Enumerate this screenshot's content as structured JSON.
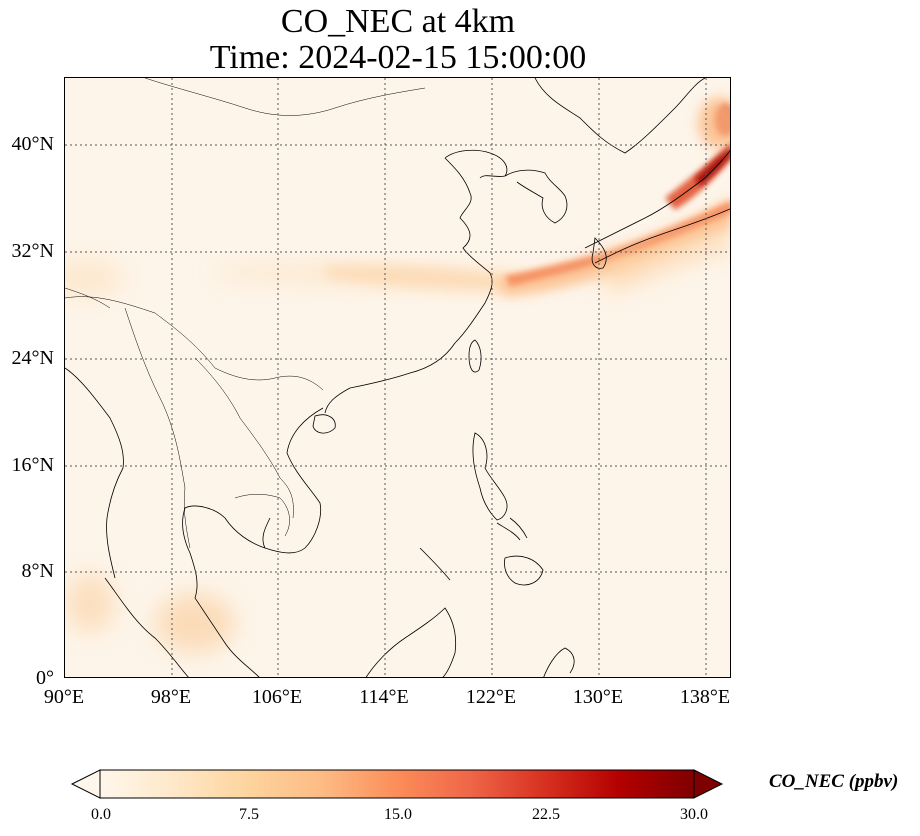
{
  "title": {
    "line1": "CO_NEC at 4km",
    "line2": "Time: 2024-02-15 15:00:00"
  },
  "map": {
    "lon_range": [
      90,
      139
    ],
    "lat_range": [
      0,
      45
    ],
    "gridlines": "dotted",
    "lat_labels": [
      "40°N",
      "32°N",
      "24°N",
      "16°N",
      "8°N",
      "0°"
    ],
    "lon_labels": [
      "90°E",
      "98°E",
      "106°E",
      "114°E",
      "122°E",
      "130°E",
      "138°E"
    ]
  },
  "colorbar": {
    "label": "CO_NEC (ppbv)",
    "colormap": "OrRd",
    "range": [
      0.0,
      30.0
    ],
    "extend": "both",
    "tick_labels": [
      "0.0",
      "7.5",
      "15.0",
      "22.5",
      "30.0"
    ],
    "colors": [
      "#fff7ec",
      "#fee8c8",
      "#fdd49e",
      "#fdbb84",
      "#fc8d59",
      "#ef6548",
      "#d7301f",
      "#b30000",
      "#7f0000"
    ]
  }
}
